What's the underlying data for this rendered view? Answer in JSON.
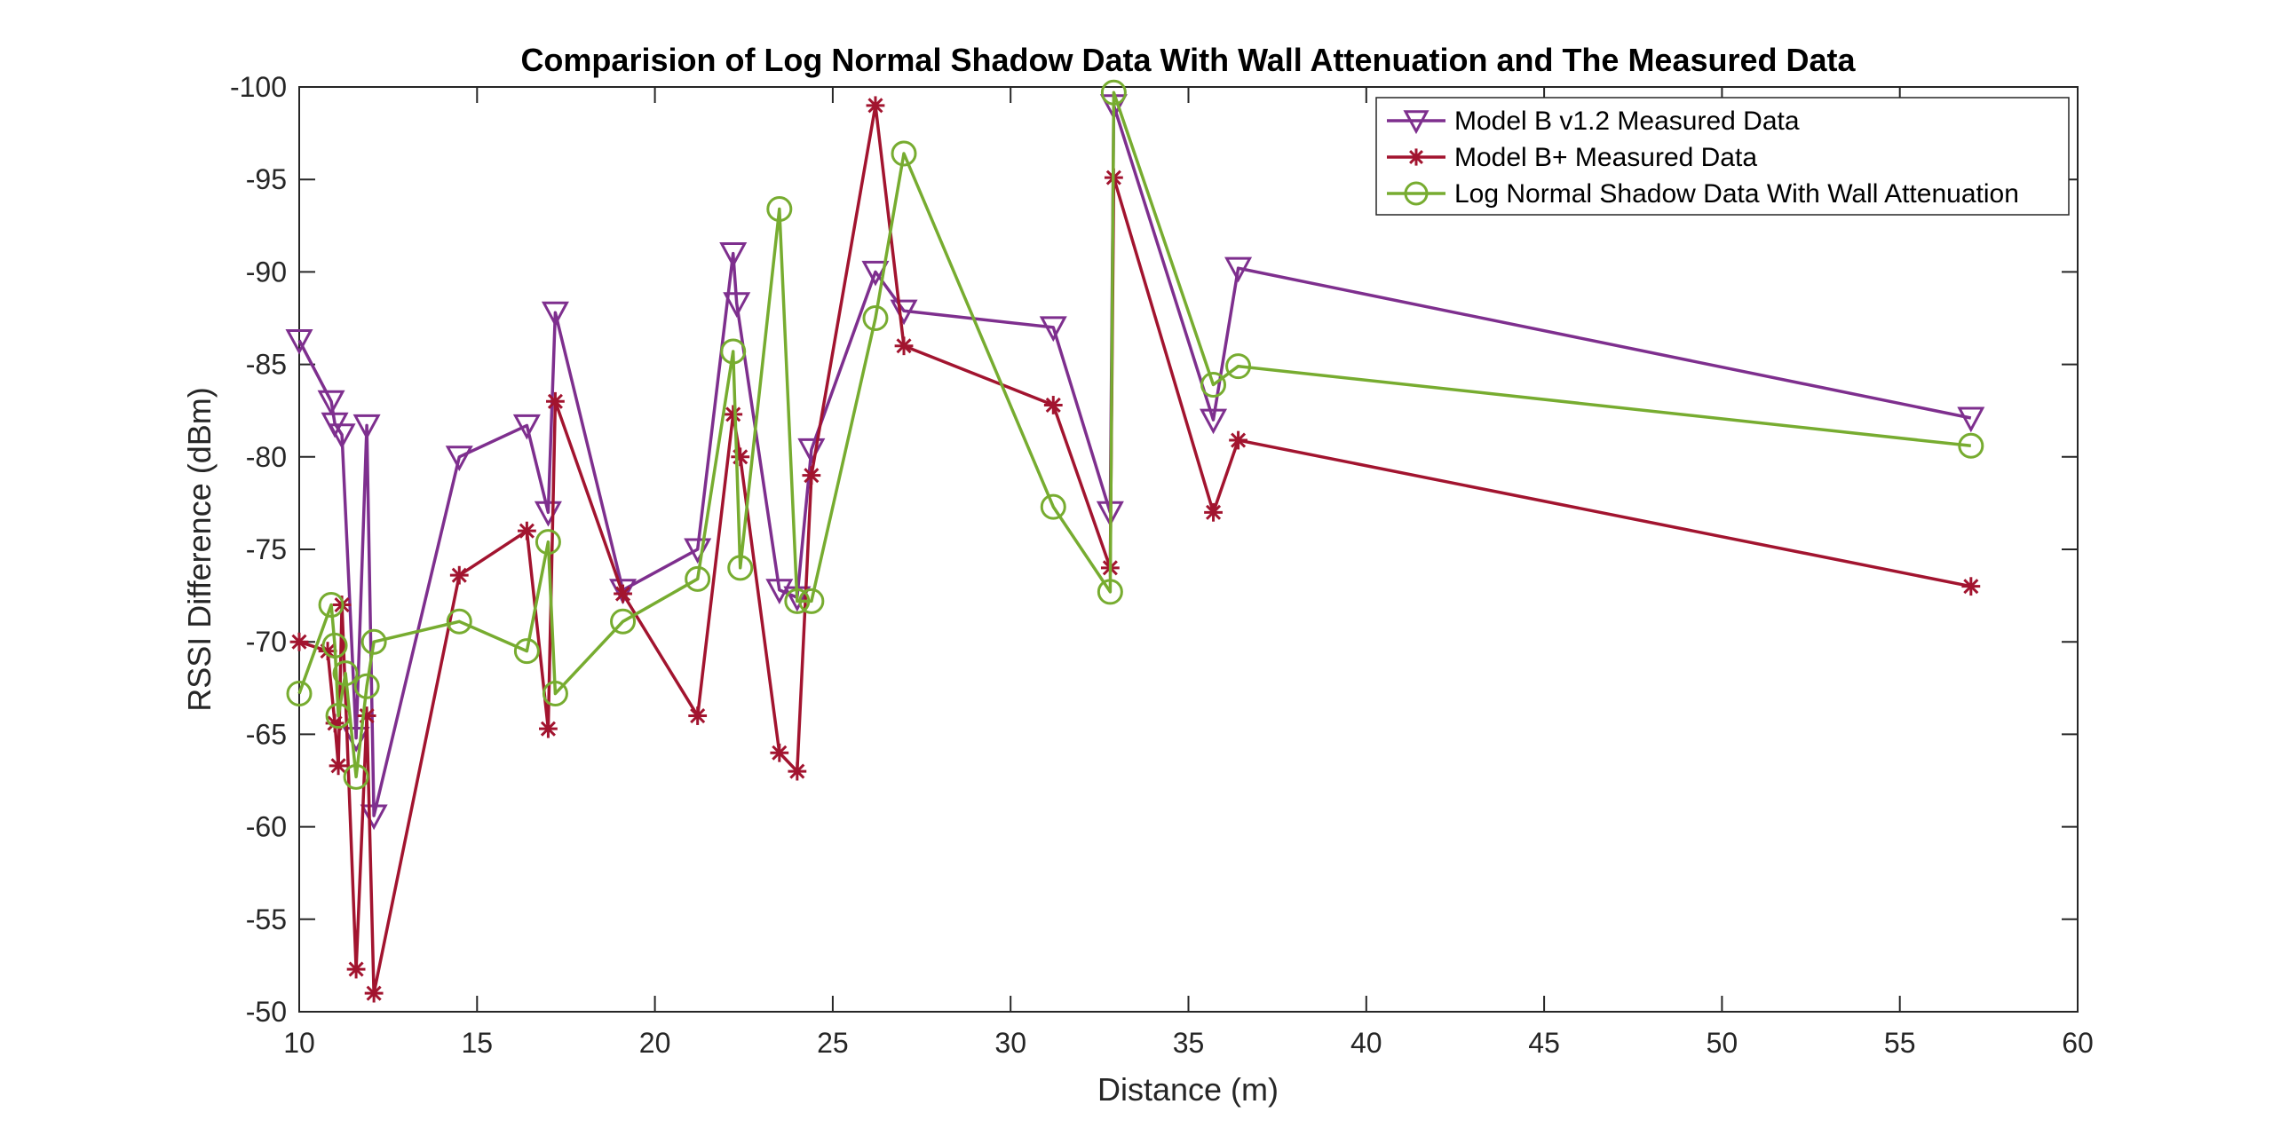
{
  "chart_data": {
    "type": "line",
    "title": "Comparision of Log Normal Shadow Data With Wall Attenuation and The Measured Data",
    "xlabel": "Distance (m)",
    "ylabel": "RSSI Difference (dBm)",
    "xlim": [
      10,
      60
    ],
    "ylim": [
      -50,
      -100
    ],
    "y_reversed": true,
    "xticks": [
      10,
      15,
      20,
      25,
      30,
      35,
      40,
      45,
      50,
      55,
      60
    ],
    "yticks": [
      -50,
      -55,
      -60,
      -65,
      -70,
      -75,
      -80,
      -85,
      -90,
      -95,
      -100
    ],
    "xtick_labels": [
      "10",
      "15",
      "20",
      "25",
      "30",
      "35",
      "40",
      "45",
      "50",
      "55",
      "60"
    ],
    "ytick_labels": [
      "-50",
      "-55",
      "-60",
      "-65",
      "-70",
      "-75",
      "-80",
      "-85",
      "-90",
      "-95",
      "-100"
    ],
    "grid": false,
    "legend_position": "top-right",
    "series": [
      {
        "name": "Model B v1.2 Measured Data",
        "color": "#7E2F8E",
        "marker": "triangle-down",
        "points": [
          [
            10.0,
            -86.3
          ],
          [
            10.9,
            -83.0
          ],
          [
            11.0,
            -81.8
          ],
          [
            11.2,
            -81.2
          ],
          [
            11.6,
            -64.8
          ],
          [
            11.9,
            -81.7
          ],
          [
            12.1,
            -60.6
          ],
          [
            14.5,
            -80.0
          ],
          [
            16.4,
            -81.7
          ],
          [
            17.0,
            -77.0
          ],
          [
            17.2,
            -87.8
          ],
          [
            19.1,
            -72.8
          ],
          [
            21.2,
            -75.0
          ],
          [
            22.2,
            -91.0
          ],
          [
            22.3,
            -88.3
          ],
          [
            23.5,
            -72.8
          ],
          [
            24.0,
            -72.4
          ],
          [
            24.4,
            -80.4
          ],
          [
            26.2,
            -90.0
          ],
          [
            27.0,
            -87.9
          ],
          [
            31.2,
            -87.0
          ],
          [
            32.8,
            -77.0
          ],
          [
            32.9,
            -99.0
          ],
          [
            35.7,
            -82.0
          ],
          [
            36.4,
            -90.2
          ],
          [
            57.0,
            -82.1
          ]
        ]
      },
      {
        "name": "Model B+ Measured Data",
        "color": "#A2142F",
        "marker": "asterisk",
        "points": [
          [
            10.0,
            -70.0
          ],
          [
            10.8,
            -69.5
          ],
          [
            11.0,
            -65.6
          ],
          [
            11.1,
            -63.3
          ],
          [
            11.2,
            -72.0
          ],
          [
            11.6,
            -52.3
          ],
          [
            11.9,
            -66.0
          ],
          [
            12.1,
            -51.0
          ],
          [
            14.5,
            -73.6
          ],
          [
            16.4,
            -76.0
          ],
          [
            17.0,
            -65.3
          ],
          [
            17.2,
            -83.0
          ],
          [
            19.1,
            -72.6
          ],
          [
            21.2,
            -66.0
          ],
          [
            22.2,
            -82.3
          ],
          [
            22.4,
            -80.0
          ],
          [
            23.5,
            -64.0
          ],
          [
            24.0,
            -63.0
          ],
          [
            24.4,
            -79.0
          ],
          [
            26.2,
            -99.0
          ],
          [
            27.0,
            -86.0
          ],
          [
            31.2,
            -82.8
          ],
          [
            32.8,
            -74.0
          ],
          [
            32.9,
            -95.1
          ],
          [
            35.7,
            -77.0
          ],
          [
            36.4,
            -80.9
          ],
          [
            57.0,
            -73.0
          ]
        ]
      },
      {
        "name": "Log Normal Shadow Data With Wall Attenuation",
        "color": "#77AC30",
        "marker": "circle",
        "points": [
          [
            10.0,
            -67.2
          ],
          [
            10.9,
            -72.0
          ],
          [
            11.0,
            -69.8
          ],
          [
            11.1,
            -66.0
          ],
          [
            11.3,
            -68.3
          ],
          [
            11.6,
            -62.7
          ],
          [
            11.9,
            -67.6
          ],
          [
            12.1,
            -70.0
          ],
          [
            14.5,
            -71.1
          ],
          [
            16.4,
            -69.5
          ],
          [
            17.0,
            -75.4
          ],
          [
            17.2,
            -67.2
          ],
          [
            19.1,
            -71.1
          ],
          [
            21.2,
            -73.4
          ],
          [
            22.2,
            -85.7
          ],
          [
            22.4,
            -74.0
          ],
          [
            23.5,
            -93.4
          ],
          [
            24.0,
            -72.2
          ],
          [
            24.4,
            -72.2
          ],
          [
            26.2,
            -87.5
          ],
          [
            27.0,
            -96.4
          ],
          [
            31.2,
            -77.3
          ],
          [
            32.8,
            -72.7
          ],
          [
            32.9,
            -99.7
          ],
          [
            35.7,
            -83.9
          ],
          [
            36.4,
            -84.9
          ],
          [
            57.0,
            -80.6
          ]
        ]
      }
    ]
  }
}
